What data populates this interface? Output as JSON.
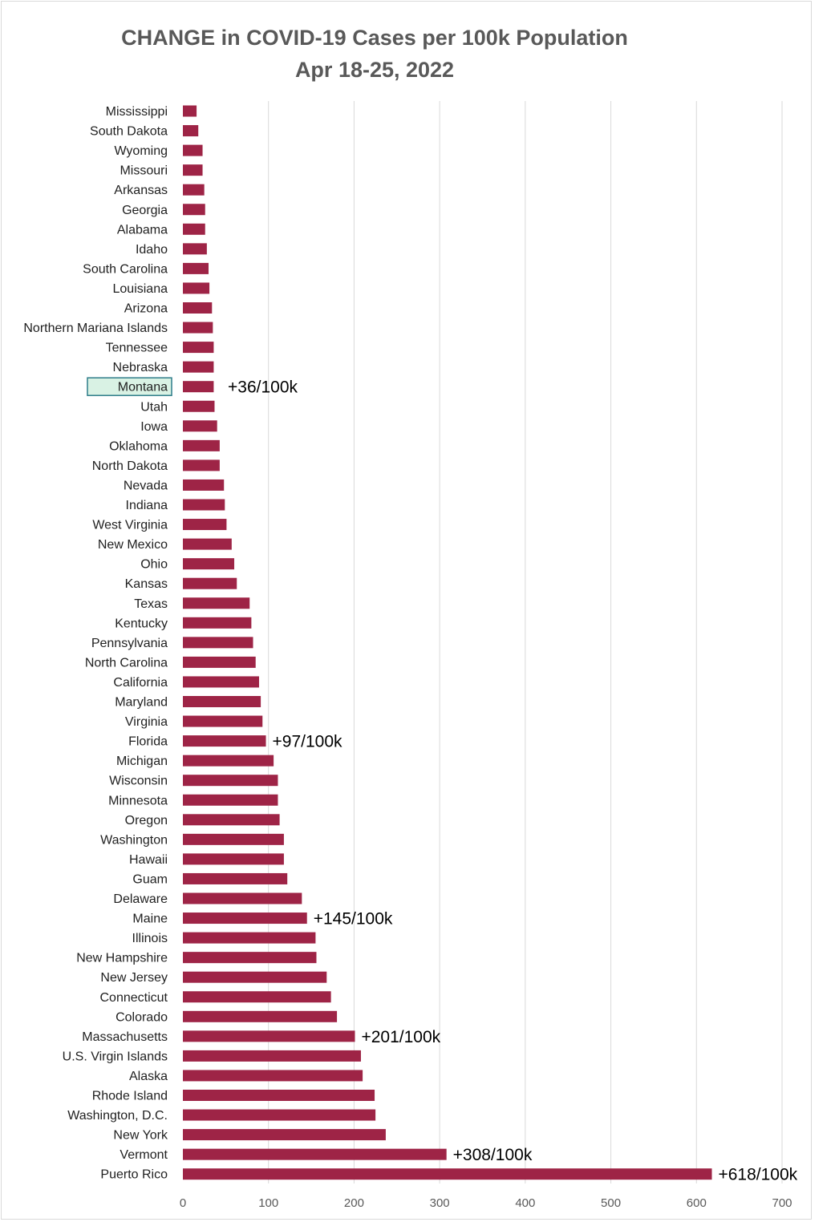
{
  "chart_data": {
    "type": "bar",
    "orientation": "horizontal",
    "title": "CHANGE in COVID-19 Cases per 100k Population",
    "subtitle": "Apr 18-25, 2022",
    "xlabel": "",
    "ylabel": "",
    "xlim": [
      0,
      700
    ],
    "xticks": [
      0,
      100,
      200,
      300,
      400,
      500,
      600,
      700
    ],
    "grid": true,
    "bar_color": "#9e2446",
    "highlight_color": "#d9f2e4",
    "highlight_border": "#2e7d8a",
    "categories": [
      "Mississippi",
      "South Dakota",
      "Wyoming",
      "Missouri",
      "Arkansas",
      "Georgia",
      "Alabama",
      "Idaho",
      "South Carolina",
      "Louisiana",
      "Arizona",
      "Northern Mariana Islands",
      "Tennessee",
      "Nebraska",
      "Montana",
      "Utah",
      "Iowa",
      "Oklahoma",
      "North Dakota",
      "Nevada",
      "Indiana",
      "West Virginia",
      "New Mexico",
      "Ohio",
      "Kansas",
      "Texas",
      "Kentucky",
      "Pennsylvania",
      "North Carolina",
      "California",
      "Maryland",
      "Virginia",
      "Florida",
      "Michigan",
      "Wisconsin",
      "Minnesota",
      "Oregon",
      "Washington",
      "Hawaii",
      "Guam",
      "Delaware",
      "Maine",
      "Illinois",
      "New Hampshire",
      "New Jersey",
      "Connecticut",
      "Colorado",
      "Massachusetts",
      "U.S. Virgin Islands",
      "Alaska",
      "Rhode Island",
      "Washington, D.C.",
      "New York",
      "Vermont",
      "Puerto Rico"
    ],
    "values": [
      16,
      18,
      23,
      23,
      25,
      26,
      26,
      28,
      30,
      31,
      34,
      35,
      36,
      36,
      36,
      37,
      40,
      43,
      43,
      48,
      49,
      51,
      57,
      60,
      63,
      78,
      80,
      82,
      85,
      89,
      91,
      93,
      97,
      106,
      111,
      111,
      113,
      118,
      118,
      122,
      139,
      145,
      155,
      156,
      168,
      173,
      180,
      201,
      208,
      210,
      224,
      225,
      237,
      308,
      618
    ],
    "highlighted_category": "Montana",
    "annotations": [
      {
        "category": "Montana",
        "text": "+36/100k"
      },
      {
        "category": "Florida",
        "text": "+97/100k"
      },
      {
        "category": "Maine",
        "text": "+145/100k"
      },
      {
        "category": "Massachusetts",
        "text": "+201/100k"
      },
      {
        "category": "Vermont",
        "text": "+308/100k"
      },
      {
        "category": "Puerto Rico",
        "text": "+618/100k"
      }
    ]
  }
}
